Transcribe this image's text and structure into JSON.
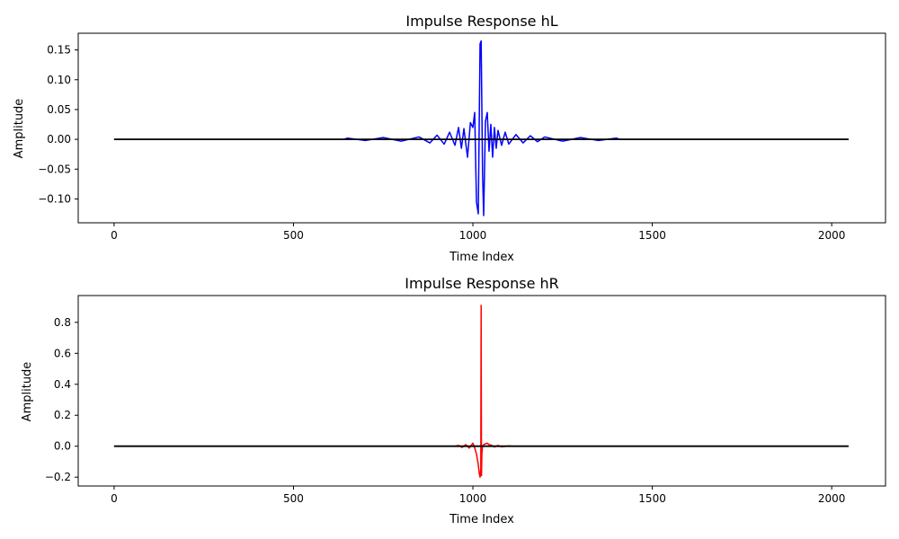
{
  "chart_data": [
    {
      "type": "line",
      "title": "Impulse Response hL",
      "xlabel": "Time Index",
      "ylabel": "Amplitude",
      "xlim": [
        -100,
        2150
      ],
      "ylim": [
        -0.14,
        0.178
      ],
      "xticks": [
        0,
        500,
        1000,
        1500,
        2000
      ],
      "xtick_labels": [
        "0",
        "500",
        "1000",
        "1500",
        "2000"
      ],
      "yticks": [
        -0.1,
        -0.05,
        0.0,
        0.05,
        0.1,
        0.15
      ],
      "ytick_labels": [
        "−0.10",
        "−0.05",
        "0.00",
        "0.05",
        "0.10",
        "0.15"
      ],
      "series": [
        {
          "color": "#0000ff",
          "x": [
            0,
            640,
            650,
            700,
            750,
            800,
            850,
            880,
            900,
            920,
            935,
            950,
            960,
            968,
            975,
            985,
            993,
            1000,
            1005,
            1010,
            1015,
            1020,
            1023,
            1027,
            1030,
            1035,
            1040,
            1045,
            1050,
            1055,
            1060,
            1065,
            1070,
            1080,
            1090,
            1100,
            1120,
            1140,
            1160,
            1180,
            1200,
            1250,
            1300,
            1350,
            1400,
            1410,
            2047
          ],
          "y": [
            0,
            0,
            0.002,
            -0.002,
            0.003,
            -0.003,
            0.004,
            -0.006,
            0.007,
            -0.008,
            0.012,
            -0.01,
            0.02,
            -0.015,
            0.018,
            -0.03,
            0.028,
            0.02,
            0.045,
            -0.105,
            -0.125,
            0.16,
            0.165,
            -0.06,
            -0.128,
            0.03,
            0.045,
            -0.02,
            0.025,
            -0.03,
            0.02,
            -0.015,
            0.015,
            -0.01,
            0.012,
            -0.008,
            0.008,
            -0.006,
            0.006,
            -0.004,
            0.004,
            -0.003,
            0.003,
            -0.002,
            0.002,
            0,
            0
          ]
        },
        {
          "color": "#000000",
          "x": [
            0,
            2047
          ],
          "y": [
            0,
            0
          ]
        }
      ]
    },
    {
      "type": "line",
      "title": "Impulse Response hR",
      "xlabel": "Time Index",
      "ylabel": "Amplitude",
      "xlim": [
        -100,
        2150
      ],
      "ylim": [
        -0.257,
        0.973
      ],
      "xticks": [
        0,
        500,
        1000,
        1500,
        2000
      ],
      "xtick_labels": [
        "0",
        "500",
        "1000",
        "1500",
        "2000"
      ],
      "yticks": [
        -0.2,
        0.0,
        0.2,
        0.4,
        0.6,
        0.8
      ],
      "ytick_labels": [
        "−0.2",
        "0.0",
        "0.2",
        "0.4",
        "0.6",
        "0.8"
      ],
      "series": [
        {
          "color": "#ff0000",
          "x": [
            0,
            950,
            960,
            970,
            980,
            990,
            1000,
            1005,
            1010,
            1015,
            1018,
            1020,
            1022,
            1023,
            1024,
            1025,
            1027,
            1030,
            1035,
            1040,
            1045,
            1050,
            1060,
            1070,
            1080,
            1100,
            1110,
            2047
          ],
          "y": [
            0,
            0,
            0.005,
            -0.008,
            0.01,
            -0.012,
            0.02,
            -0.01,
            -0.05,
            -0.12,
            -0.18,
            -0.2,
            -0.15,
            0.91,
            -0.19,
            -0.05,
            0.0,
            0.01,
            0.015,
            0.02,
            0.01,
            0.008,
            -0.005,
            0.005,
            -0.004,
            0.002,
            0,
            0
          ]
        },
        {
          "color": "#000000",
          "x": [
            0,
            2047
          ],
          "y": [
            0,
            0
          ]
        }
      ]
    }
  ]
}
